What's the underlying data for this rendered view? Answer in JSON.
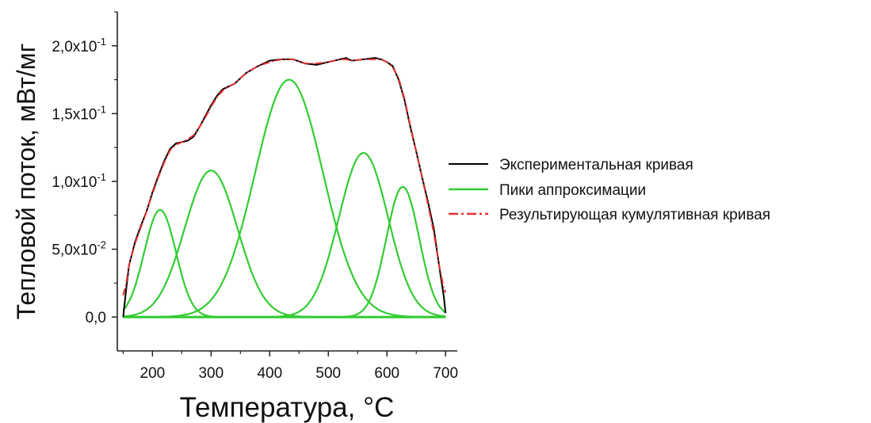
{
  "chart_data": {
    "type": "line",
    "xlabel": "Температура, °C",
    "ylabel": "Тепловой поток, мВт/мг",
    "xlim": [
      140,
      720
    ],
    "ylim": [
      -0.025,
      0.225
    ],
    "x_ticks": [
      200,
      300,
      400,
      500,
      600,
      700
    ],
    "x_tick_labels": [
      "200",
      "300",
      "400",
      "500",
      "600",
      "700"
    ],
    "y_ticks": [
      0,
      0.05,
      0.1,
      0.15,
      0.2
    ],
    "y_tick_labels": [
      "0,0",
      "5,0x10",
      "1,0x10",
      "1,5x10",
      "2,0x10"
    ],
    "y_tick_exponents": [
      "",
      "-2",
      "-1",
      "-1",
      "-1"
    ],
    "grid": false,
    "legend_position": "right",
    "legend": [
      {
        "label": "Экспериментальная кривая",
        "color": "#000000",
        "style": "solid"
      },
      {
        "label": "Пики аппроксимации",
        "color": "#33cc33",
        "style": "solid"
      },
      {
        "label": "Результирующая кумулятивная кривая",
        "color": "#e53030",
        "style": "dashdot"
      }
    ],
    "peaks": [
      {
        "center": 213,
        "amplitude": 0.079,
        "sigma": 27
      },
      {
        "center": 300,
        "amplitude": 0.108,
        "sigma": 45
      },
      {
        "center": 433,
        "amplitude": 0.175,
        "sigma": 58
      },
      {
        "center": 560,
        "amplitude": 0.121,
        "sigma": 42
      },
      {
        "center": 627,
        "amplitude": 0.096,
        "sigma": 28
      }
    ],
    "experimental": {
      "x": [
        150,
        155,
        160,
        170,
        180,
        190,
        200,
        210,
        220,
        230,
        240,
        250,
        260,
        270,
        280,
        290,
        300,
        310,
        320,
        330,
        340,
        350,
        360,
        380,
        400,
        420,
        440,
        460,
        480,
        500,
        520,
        530,
        540,
        560,
        580,
        590,
        600,
        610,
        620,
        630,
        640,
        650,
        660,
        670,
        680,
        690,
        697,
        700
      ],
      "y": [
        0.0,
        0.02,
        0.038,
        0.055,
        0.067,
        0.078,
        0.092,
        0.104,
        0.115,
        0.124,
        0.128,
        0.129,
        0.13,
        0.133,
        0.14,
        0.148,
        0.156,
        0.163,
        0.168,
        0.17,
        0.172,
        0.176,
        0.18,
        0.185,
        0.189,
        0.19,
        0.19,
        0.187,
        0.186,
        0.188,
        0.19,
        0.191,
        0.189,
        0.19,
        0.191,
        0.19,
        0.188,
        0.185,
        0.175,
        0.16,
        0.14,
        0.122,
        0.103,
        0.085,
        0.065,
        0.035,
        0.015,
        0.003
      ]
    },
    "cumulative": {
      "x": [
        150,
        155,
        160,
        170,
        180,
        190,
        200,
        210,
        220,
        230,
        240,
        250,
        260,
        270,
        280,
        290,
        300,
        310,
        320,
        330,
        340,
        350,
        360,
        380,
        400,
        420,
        440,
        460,
        480,
        500,
        520,
        530,
        540,
        560,
        580,
        590,
        600,
        610,
        620,
        630,
        640,
        650,
        660,
        670,
        680,
        690,
        697,
        700
      ],
      "y": [
        0.016,
        0.024,
        0.038,
        0.054,
        0.066,
        0.078,
        0.091,
        0.103,
        0.114,
        0.123,
        0.127,
        0.129,
        0.131,
        0.134,
        0.14,
        0.147,
        0.155,
        0.162,
        0.167,
        0.17,
        0.172,
        0.176,
        0.18,
        0.185,
        0.188,
        0.19,
        0.19,
        0.187,
        0.187,
        0.188,
        0.19,
        0.19,
        0.189,
        0.19,
        0.19,
        0.19,
        0.188,
        0.184,
        0.176,
        0.161,
        0.141,
        0.122,
        0.103,
        0.083,
        0.062,
        0.036,
        0.021,
        0.018
      ]
    }
  }
}
